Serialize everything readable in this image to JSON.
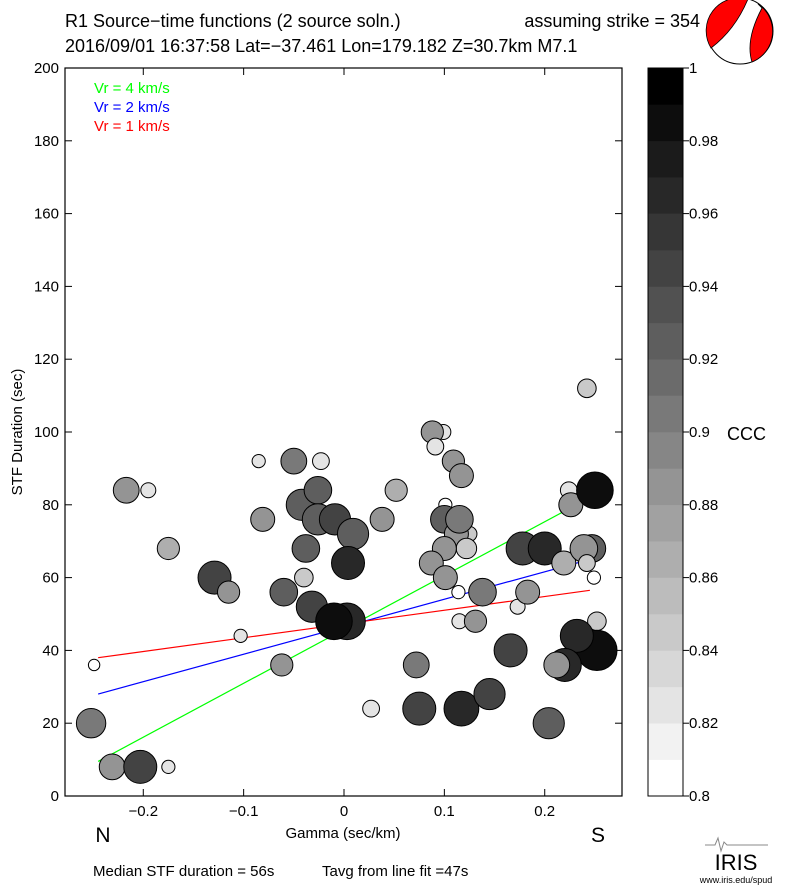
{
  "header": {
    "title": "R1 Source−time functions (2 source soln.)",
    "strike": "assuming strike = 354",
    "event": "2016/09/01 16:37:58  Lat=−37.461 Lon=179.182  Z=30.7km  M7.1"
  },
  "footer": {
    "median": "Median STF duration = 56s",
    "tavg": "Tavg from line fit =47s",
    "logo": "IRIS",
    "url": "www.iris.edu/spud"
  },
  "chart_data": {
    "type": "scatter",
    "xlabel": "Gamma (sec/km)",
    "ylabel": "STF Duration (sec)",
    "xlim": [
      -0.278,
      0.277
    ],
    "ylim": [
      0,
      200
    ],
    "xticks": [
      -0.2,
      -0.1,
      0,
      0.1,
      0.2
    ],
    "xtick_labels": [
      "−0.2",
      "−0.1",
      "0",
      "0.1",
      "0.2"
    ],
    "yticks": [
      0,
      20,
      40,
      60,
      80,
      100,
      120,
      140,
      160,
      180,
      200
    ],
    "direction_labels": {
      "left": "N",
      "right": "S"
    },
    "grid": false,
    "legend": {
      "placement": "top-left",
      "entries": [
        {
          "label": "Vr = 4 km/s",
          "color": "#00ff00"
        },
        {
          "label": "Vr = 2 km/s",
          "color": "#0000ff"
        },
        {
          "label": "Vr = 1 km/s",
          "color": "#ff0000"
        }
      ]
    },
    "lines": [
      {
        "label": "Vr = 4 km/s",
        "color": "#00ff00",
        "x": [
          -0.245,
          0.245
        ],
        "y": [
          9.5,
          82
        ]
      },
      {
        "label": "Vr = 2 km/s",
        "color": "#0000ff",
        "x": [
          -0.245,
          0.245
        ],
        "y": [
          28,
          65
        ]
      },
      {
        "label": "Vr = 1 km/s",
        "color": "#ff0000",
        "x": [
          -0.245,
          0.245
        ],
        "y": [
          38,
          56.5
        ]
      }
    ],
    "colorbar": {
      "label": "CCC",
      "range": [
        0.8,
        1.0
      ],
      "ticks": [
        "0.8",
        "0.82",
        "0.84",
        "0.86",
        "0.88",
        "0.9",
        "0.92",
        "0.94",
        "0.96",
        "0.98",
        "1"
      ],
      "bins": 20,
      "colormap": "white-to-black"
    },
    "points_columns": [
      "gamma",
      "duration",
      "ccc",
      "size"
    ],
    "points": [
      [
        -0.252,
        20,
        0.9,
        0.65
      ],
      [
        -0.231,
        8,
        0.88,
        0.55
      ],
      [
        -0.203,
        8,
        0.94,
        0.75
      ],
      [
        -0.175,
        8,
        0.82,
        0.2
      ],
      [
        -0.249,
        36,
        0.8,
        0.15
      ],
      [
        -0.217,
        84,
        0.88,
        0.55
      ],
      [
        -0.195,
        84,
        0.82,
        0.25
      ],
      [
        -0.175,
        68,
        0.86,
        0.45
      ],
      [
        -0.137,
        60,
        0.8,
        0.2
      ],
      [
        -0.129,
        60,
        0.94,
        0.75
      ],
      [
        -0.115,
        56,
        0.88,
        0.45
      ],
      [
        -0.103,
        44,
        0.82,
        0.2
      ],
      [
        -0.085,
        92,
        0.82,
        0.2
      ],
      [
        -0.081,
        76,
        0.88,
        0.5
      ],
      [
        -0.05,
        92,
        0.9,
        0.55
      ],
      [
        -0.023,
        92,
        0.82,
        0.3
      ],
      [
        -0.042,
        80,
        0.92,
        0.7
      ],
      [
        -0.026,
        84,
        0.92,
        0.6
      ],
      [
        -0.026,
        76,
        0.92,
        0.7
      ],
      [
        -0.009,
        76,
        0.94,
        0.7
      ],
      [
        0.009,
        72,
        0.92,
        0.7
      ],
      [
        0.004,
        64,
        0.96,
        0.75
      ],
      [
        -0.038,
        68,
        0.92,
        0.6
      ],
      [
        -0.04,
        60,
        0.84,
        0.35
      ],
      [
        -0.06,
        56,
        0.92,
        0.6
      ],
      [
        -0.032,
        52,
        0.94,
        0.7
      ],
      [
        0.003,
        48,
        0.96,
        0.85
      ],
      [
        -0.01,
        48,
        0.98,
        0.85
      ],
      [
        -0.062,
        36,
        0.88,
        0.45
      ],
      [
        0.027,
        24,
        0.82,
        0.3
      ],
      [
        0.038,
        76,
        0.88,
        0.5
      ],
      [
        0.052,
        84,
        0.86,
        0.45
      ],
      [
        0.099,
        100,
        0.82,
        0.25
      ],
      [
        0.088,
        100,
        0.88,
        0.45
      ],
      [
        0.091,
        96,
        0.82,
        0.3
      ],
      [
        0.109,
        92,
        0.88,
        0.45
      ],
      [
        0.117,
        88,
        0.88,
        0.5
      ],
      [
        0.101,
        80,
        0.8,
        0.2
      ],
      [
        0.1,
        76,
        0.92,
        0.6
      ],
      [
        0.125,
        72,
        0.84,
        0.25
      ],
      [
        0.112,
        72,
        0.88,
        0.5
      ],
      [
        0.115,
        76,
        0.9,
        0.6
      ],
      [
        0.122,
        68,
        0.84,
        0.4
      ],
      [
        0.1,
        68,
        0.88,
        0.5
      ],
      [
        0.087,
        64,
        0.88,
        0.5
      ],
      [
        0.101,
        60,
        0.88,
        0.5
      ],
      [
        0.114,
        56,
        0.8,
        0.2
      ],
      [
        0.115,
        48,
        0.82,
        0.25
      ],
      [
        0.131,
        48,
        0.88,
        0.45
      ],
      [
        0.138,
        56,
        0.9,
        0.6
      ],
      [
        0.173,
        52,
        0.82,
        0.25
      ],
      [
        0.183,
        56,
        0.88,
        0.5
      ],
      [
        0.178,
        68,
        0.94,
        0.75
      ],
      [
        0.2,
        68,
        0.96,
        0.75
      ],
      [
        0.219,
        64,
        0.86,
        0.5
      ],
      [
        0.247,
        68,
        0.92,
        0.6
      ],
      [
        0.239,
        68,
        0.88,
        0.6
      ],
      [
        0.242,
        64,
        0.84,
        0.3
      ],
      [
        0.249,
        60,
        0.8,
        0.2
      ],
      [
        0.224,
        84,
        0.82,
        0.3
      ],
      [
        0.226,
        80,
        0.88,
        0.5
      ],
      [
        0.25,
        84,
        0.98,
        0.85
      ],
      [
        0.242,
        112,
        0.84,
        0.35
      ],
      [
        0.252,
        48,
        0.84,
        0.35
      ],
      [
        0.252,
        40,
        0.98,
        0.95
      ],
      [
        0.232,
        44,
        0.96,
        0.75
      ],
      [
        0.22,
        36,
        0.96,
        0.75
      ],
      [
        0.212,
        36,
        0.88,
        0.55
      ],
      [
        0.166,
        40,
        0.94,
        0.75
      ],
      [
        0.072,
        36,
        0.9,
        0.55
      ],
      [
        0.075,
        24,
        0.94,
        0.75
      ],
      [
        0.117,
        24,
        0.96,
        0.8
      ],
      [
        0.145,
        28,
        0.94,
        0.7
      ],
      [
        0.204,
        20,
        0.92,
        0.7
      ]
    ]
  },
  "beachball": {
    "fill_color": "#ff0000"
  }
}
